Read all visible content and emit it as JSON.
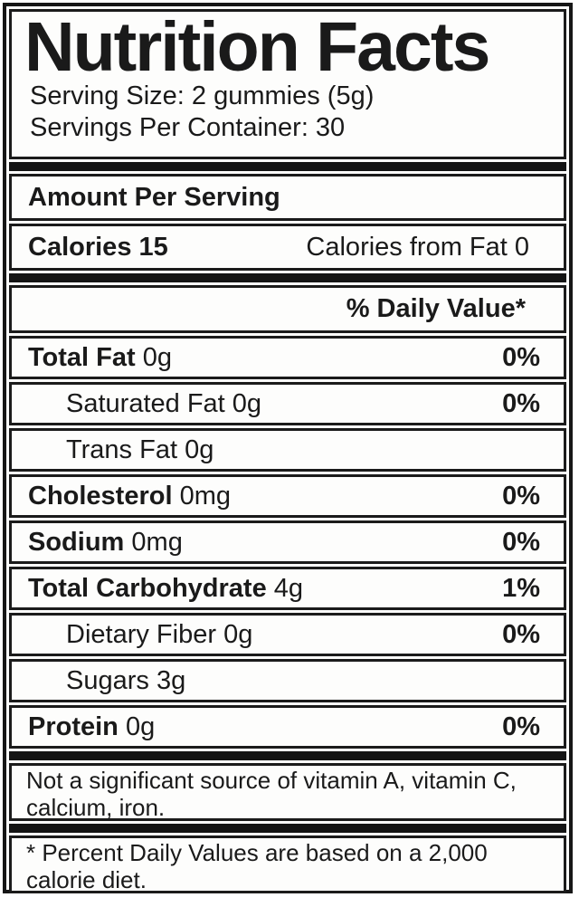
{
  "colors": {
    "text": "#1a1a1a",
    "border": "#161616",
    "background": "#fbfbfa"
  },
  "label": {
    "title": "Nutrition Facts",
    "serving_size": "Serving Size: 2 gummies (5g)",
    "servings_per_container": "Servings Per Container: 30",
    "amount_per_serving": "Amount Per Serving",
    "calories": {
      "label": "Calories",
      "value": "15",
      "from_fat": "Calories from Fat 0"
    },
    "daily_value_header": "% Daily Value*",
    "rows": [
      {
        "name": "Total Fat",
        "amount": "0g",
        "daily_value": "0%",
        "bold": true,
        "indent": false
      },
      {
        "name": "Saturated Fat",
        "amount": "0g",
        "daily_value": "0%",
        "bold": false,
        "indent": true
      },
      {
        "name": "Trans Fat",
        "amount": "0g",
        "daily_value": "",
        "bold": false,
        "indent": true
      },
      {
        "name": "Cholesterol",
        "amount": "0mg",
        "daily_value": "0%",
        "bold": true,
        "indent": false
      },
      {
        "name": "Sodium",
        "amount": "0mg",
        "daily_value": "0%",
        "bold": true,
        "indent": false
      },
      {
        "name": "Total Carbohydrate",
        "amount": "4g",
        "daily_value": "1%",
        "bold": true,
        "indent": false
      },
      {
        "name": "Dietary Fiber",
        "amount": "0g",
        "daily_value": "0%",
        "bold": false,
        "indent": true
      },
      {
        "name": "Sugars",
        "amount": "3g",
        "daily_value": "",
        "bold": false,
        "indent": true
      },
      {
        "name": "Protein",
        "amount": "0g",
        "daily_value": "0%",
        "bold": true,
        "indent": false
      }
    ],
    "footnotes": {
      "not_significant": "Not a significant source of vitamin A, vitamin C, calcium, iron.",
      "daily_values": "* Percent Daily Values are based on a 2,000 calorie diet."
    }
  }
}
